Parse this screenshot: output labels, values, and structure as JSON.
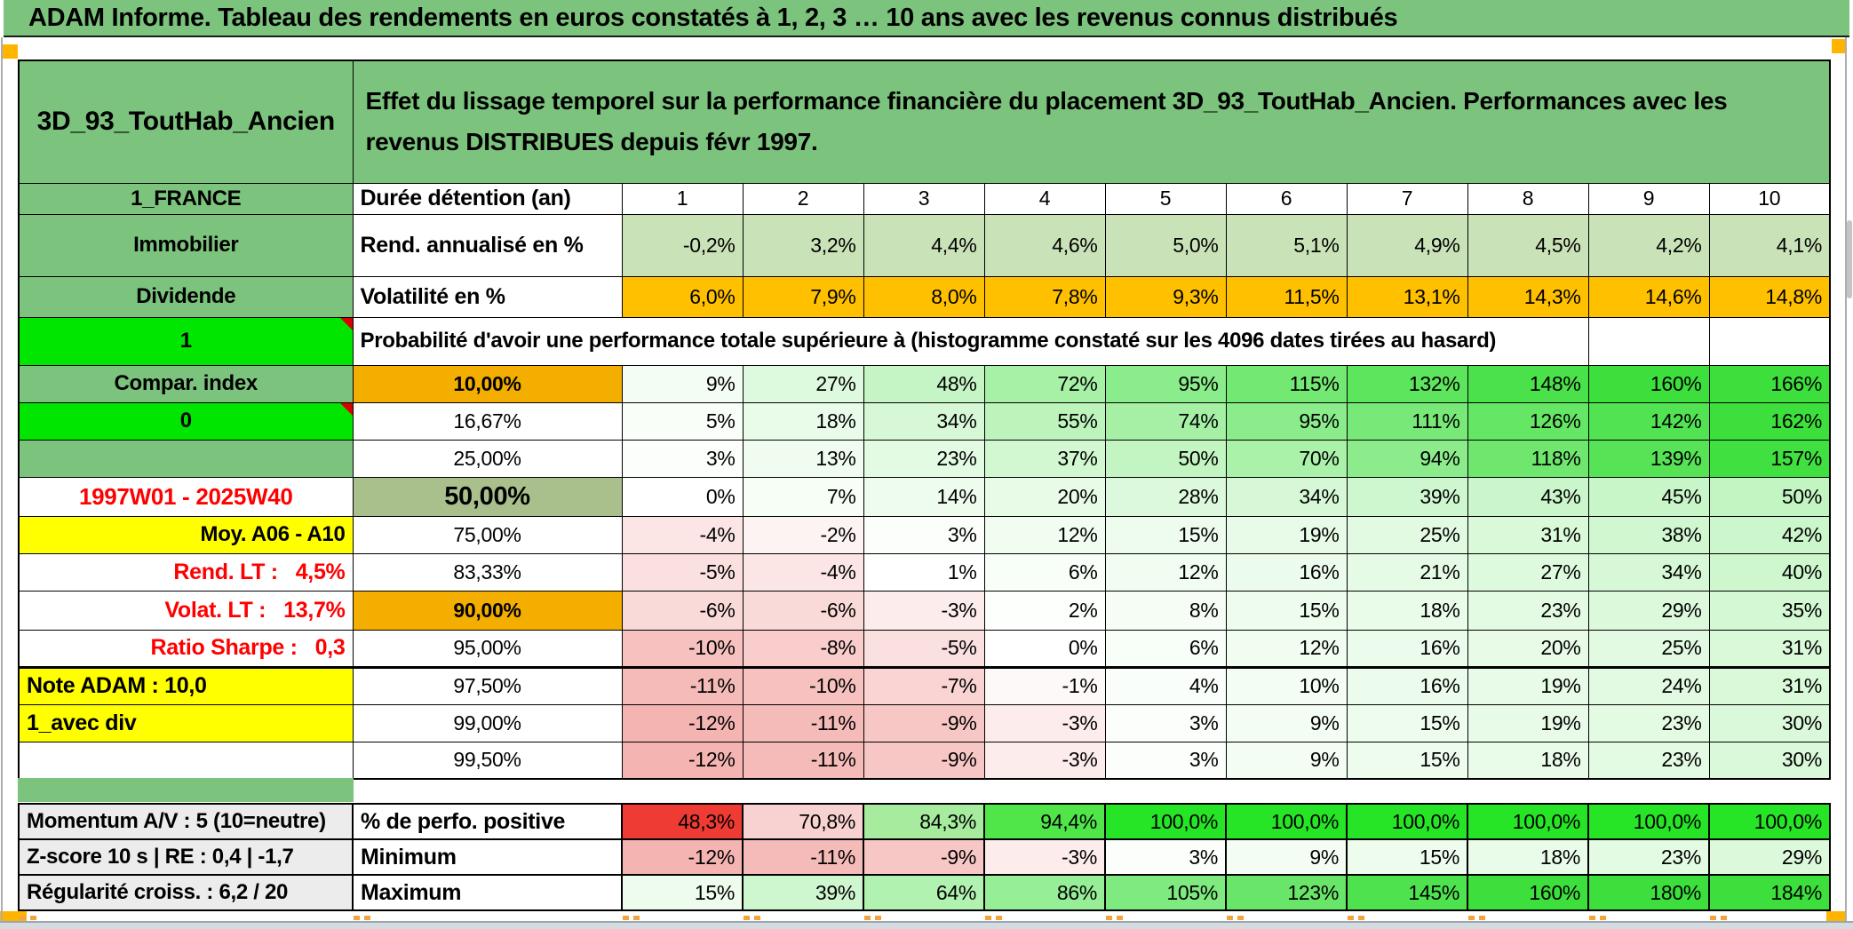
{
  "title_bar": {
    "text": "ADAM Informe. Tableau des rendements en euros constatés à 1, 2, 3 … 10 ans avec les revenus connus distribués"
  },
  "header": {
    "product": "3D_93_ToutHab_Ancien",
    "description": "Effet du lissage temporel sur la performance financière du placement 3D_93_ToutHab_Ancien. Performances avec les revenus DISTRIBUES depuis févr 1997."
  },
  "rows": [
    {
      "name": "duration-header",
      "a": {
        "text": "1_FRANCE",
        "variant": "green"
      },
      "b": {
        "text": "Durée détention (an)",
        "variant": "label"
      },
      "cells": {
        "values": [
          "1",
          "2",
          "3",
          "4",
          "5",
          "6",
          "7",
          "8",
          "9",
          "10"
        ],
        "bg": "white",
        "bold": true,
        "align": "center"
      }
    },
    {
      "name": "annualized-return",
      "a": {
        "text": "Immobilier",
        "variant": "green"
      },
      "b": {
        "text": "Rend. annualisé en %",
        "variant": "label"
      },
      "cells": {
        "values": [
          "-0,2%",
          "3,2%",
          "4,4%",
          "4,6%",
          "5,0%",
          "5,1%",
          "4,9%",
          "4,5%",
          "4,2%",
          "4,1%"
        ],
        "bg": "light_green_row",
        "bold": true
      }
    },
    {
      "name": "volatility",
      "a": {
        "text": "Dividende",
        "variant": "green"
      },
      "b": {
        "text": "Volatilité en %",
        "variant": "label"
      },
      "cells": {
        "values": [
          "6,0%",
          "7,9%",
          "8,0%",
          "7,8%",
          "9,3%",
          "11,5%",
          "13,1%",
          "14,3%",
          "14,6%",
          "14,8%"
        ],
        "bg": "orange_row"
      }
    },
    {
      "name": "probability-banner",
      "a": {
        "text": "1",
        "variant": "bright",
        "note": true
      },
      "banner": "Probabilité d'avoir une performance totale supérieure à (histogramme constaté sur les 4096 dates tirées au hasard)",
      "empty_tail": 2
    },
    {
      "name": "p10",
      "a": {
        "text": "Compar. index",
        "variant": "green"
      },
      "b": {
        "text": "10,00%",
        "variant": "orange",
        "bold": true
      },
      "cells": {
        "values": [
          "9%",
          "27%",
          "48%",
          "72%",
          "95%",
          "115%",
          "132%",
          "148%",
          "160%",
          "166%"
        ],
        "scale": true,
        "bold": true
      }
    },
    {
      "name": "p16_67",
      "a": {
        "text": "0",
        "variant": "bright",
        "note": true
      },
      "b": {
        "text": "16,67%",
        "variant": "percent"
      },
      "cells": {
        "values": [
          "5%",
          "18%",
          "34%",
          "55%",
          "74%",
          "95%",
          "111%",
          "126%",
          "142%",
          "162%"
        ],
        "scale": true
      }
    },
    {
      "name": "p25",
      "a": {
        "text": "",
        "variant": "green"
      },
      "b": {
        "text": "25,00%",
        "variant": "percent"
      },
      "cells": {
        "values": [
          "3%",
          "13%",
          "23%",
          "37%",
          "50%",
          "70%",
          "94%",
          "118%",
          "139%",
          "157%"
        ],
        "scale": true
      }
    },
    {
      "name": "p50",
      "a": {
        "text": "1997W01 - 2025W40",
        "variant": "red-center"
      },
      "b": {
        "text": "50,00%",
        "variant": "olive",
        "bold": true,
        "big": true
      },
      "cells": {
        "values": [
          "0%",
          "7%",
          "14%",
          "20%",
          "28%",
          "34%",
          "39%",
          "43%",
          "45%",
          "50%"
        ],
        "scale": true,
        "bold": true
      }
    },
    {
      "name": "p75",
      "a": {
        "text": "Moy. A06 - A10",
        "variant": "yellow-right"
      },
      "b": {
        "text": "75,00%",
        "variant": "percent"
      },
      "cells": {
        "values": [
          "-4%",
          "-2%",
          "3%",
          "12%",
          "15%",
          "19%",
          "25%",
          "31%",
          "38%",
          "42%"
        ],
        "scale": true
      }
    },
    {
      "name": "p83_33",
      "a": {
        "text": "Rend. LT :   4,5%",
        "variant": "red-right"
      },
      "b": {
        "text": "83,33%",
        "variant": "percent"
      },
      "cells": {
        "values": [
          "-5%",
          "-4%",
          "1%",
          "6%",
          "12%",
          "16%",
          "21%",
          "27%",
          "34%",
          "40%"
        ],
        "scale": true
      }
    },
    {
      "name": "p90",
      "a": {
        "text": "Volat. LT :   13,7%",
        "variant": "red-right"
      },
      "b": {
        "text": "90,00%",
        "variant": "orange",
        "bold": true
      },
      "cells": {
        "values": [
          "-6%",
          "-6%",
          "-3%",
          "2%",
          "8%",
          "15%",
          "18%",
          "23%",
          "29%",
          "35%"
        ],
        "scale": true,
        "bold": true
      }
    },
    {
      "name": "p95",
      "a": {
        "text": "Ratio Sharpe :   0,3",
        "variant": "red-right"
      },
      "b": {
        "text": "95,00%",
        "variant": "percent"
      },
      "cells": {
        "values": [
          "-10%",
          "-8%",
          "-5%",
          "0%",
          "6%",
          "12%",
          "16%",
          "20%",
          "25%",
          "31%"
        ],
        "scale": true
      },
      "thick_bottom": true
    },
    {
      "name": "p97_5",
      "a": {
        "text": "Note ADAM : 10,0",
        "variant": "yellow-left"
      },
      "b": {
        "text": "97,50%",
        "variant": "percent"
      },
      "cells": {
        "values": [
          "-11%",
          "-10%",
          "-7%",
          "-1%",
          "4%",
          "10%",
          "16%",
          "19%",
          "24%",
          "31%"
        ],
        "scale": true
      }
    },
    {
      "name": "p99",
      "a": {
        "text": "1_avec div",
        "variant": "yellow-left"
      },
      "b": {
        "text": "99,00%",
        "variant": "percent"
      },
      "cells": {
        "values": [
          "-12%",
          "-11%",
          "-9%",
          "-3%",
          "3%",
          "9%",
          "15%",
          "19%",
          "23%",
          "30%"
        ],
        "scale": true
      }
    },
    {
      "name": "p99_5",
      "a": {
        "text": "",
        "variant": "white"
      },
      "b": {
        "text": "99,50%",
        "variant": "percent"
      },
      "cells": {
        "values": [
          "-12%",
          "-11%",
          "-9%",
          "-3%",
          "3%",
          "9%",
          "15%",
          "18%",
          "23%",
          "30%"
        ],
        "scale": true
      }
    }
  ],
  "bottom_rows": [
    {
      "name": "positive-perf",
      "a": {
        "text": "Momentum A/V : 5 (10=neutre)",
        "variant": "gray"
      },
      "b": {
        "text": "% de perfo. positive",
        "variant": "label"
      },
      "cells": {
        "values": [
          "48,3%",
          "70,8%",
          "84,3%",
          "94,4%",
          "100,0%",
          "100,0%",
          "100,0%",
          "100,0%",
          "100,0%",
          "100,0%"
        ],
        "bgs": [
          "#EE3B33",
          "#F8D2D0",
          "#A6EB9E",
          "#50E64A",
          "#26E426",
          "#26E426",
          "#26E426",
          "#26E426",
          "#26E426",
          "#26E426"
        ],
        "bold": true
      }
    },
    {
      "name": "minimum",
      "a": {
        "text": "Z-score 10 s | RE : 0,4 | -1,7",
        "variant": "gray"
      },
      "b": {
        "text": "Minimum",
        "variant": "label"
      },
      "cells": {
        "values": [
          "-12%",
          "-11%",
          "-9%",
          "-3%",
          "3%",
          "9%",
          "15%",
          "18%",
          "23%",
          "29%"
        ],
        "scale": true,
        "bold": true
      }
    },
    {
      "name": "maximum",
      "a": {
        "text": "Régularité croiss. : 6,2 / 20",
        "variant": "gray"
      },
      "b": {
        "text": "Maximum",
        "variant": "label"
      },
      "cells": {
        "values": [
          "15%",
          "39%",
          "64%",
          "86%",
          "105%",
          "123%",
          "145%",
          "160%",
          "180%",
          "184%"
        ],
        "scale": true,
        "bold": true
      }
    }
  ],
  "colors": {
    "header_green": "#7CC47D",
    "bright_green": "#00E600",
    "light_green_row": "#C9E2B8",
    "orange_row": "#FFC000",
    "orange_cell": "#F3AE00",
    "olive_cell": "#A9C08D",
    "yellow": "#FFFF00",
    "gray_label": "#ECECEC",
    "red_text": "#FF0000",
    "scale_green": "#3CDF3C",
    "scale_pink": "#F2A8A5",
    "perfo_red": "#EE3B33",
    "accent_orange": "#FFB400",
    "white": "#FFFFFF"
  }
}
